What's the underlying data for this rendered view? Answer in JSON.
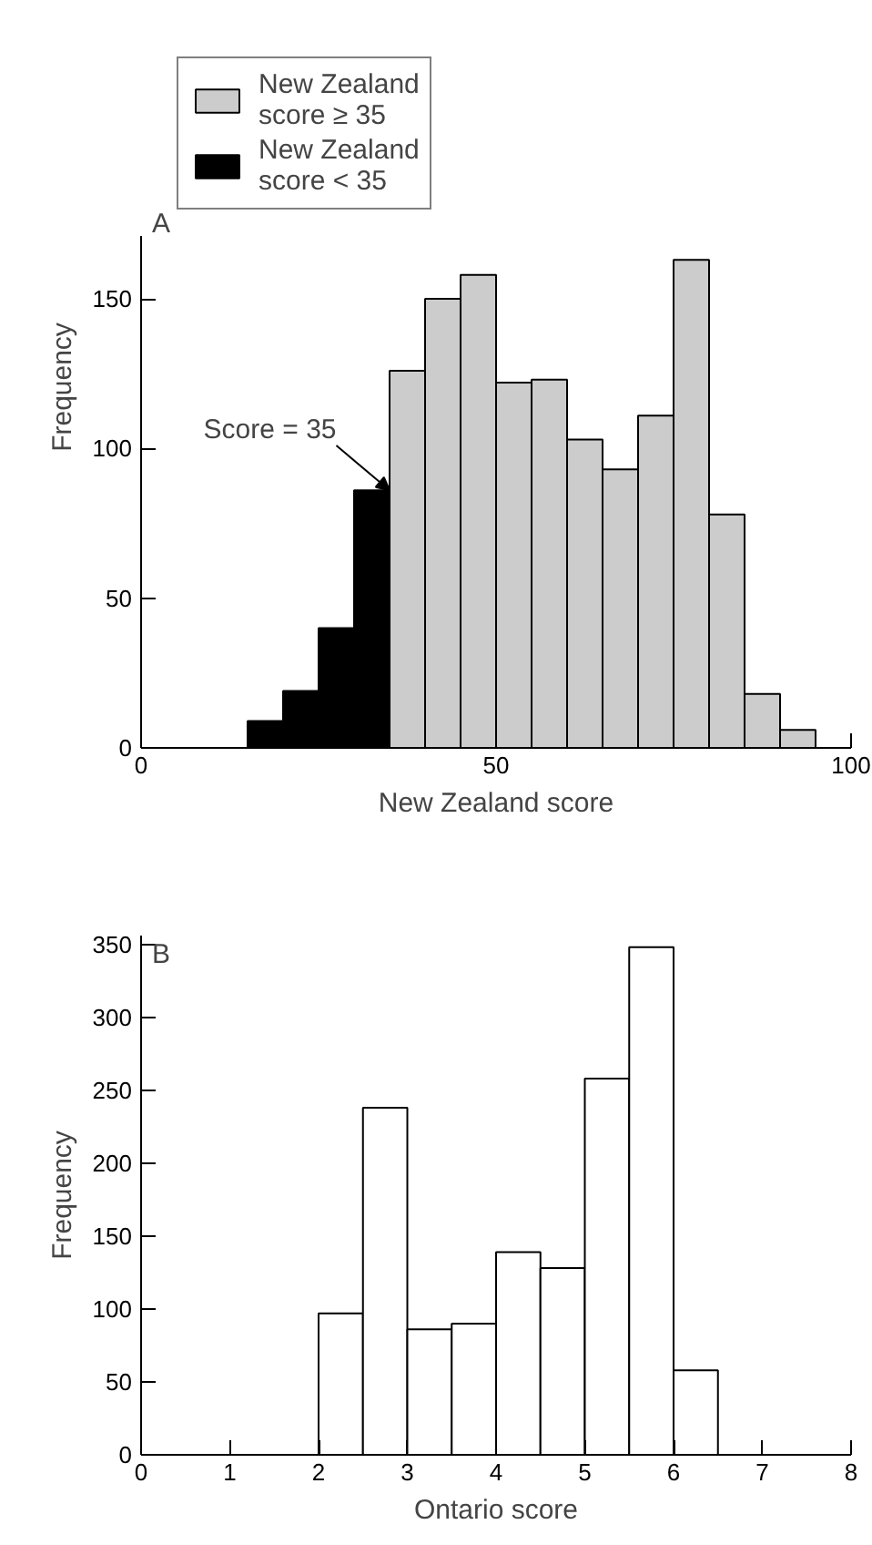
{
  "chart_data": [
    {
      "type": "histogram",
      "title": "A",
      "xlabel": "New Zealand score",
      "ylabel": "Frequency",
      "bins": [
        15,
        20,
        25,
        30,
        35,
        40,
        45,
        50,
        55,
        60,
        65,
        70,
        75,
        80,
        85,
        90,
        95
      ],
      "series": [
        {
          "name": "New Zealand score ≥ 35",
          "color": "#cccccc",
          "values": [
            null,
            null,
            null,
            null,
            126,
            150,
            158,
            122,
            123,
            103,
            93,
            111,
            163,
            78,
            18,
            6
          ]
        },
        {
          "name": "New Zealand score < 35",
          "color": "#000000",
          "values": [
            9,
            19,
            40,
            86,
            null,
            null,
            null,
            null,
            null,
            null,
            null,
            null,
            null,
            null,
            null,
            null
          ]
        }
      ],
      "xlim": [
        0,
        100
      ],
      "ylim": [
        0,
        171
      ],
      "xticks": [
        0,
        50,
        100
      ],
      "yticks": [
        0,
        50,
        100,
        150
      ],
      "legend": "top",
      "grid": false,
      "annotations": [
        {
          "text": "Score = 35",
          "x": 35,
          "y": 86
        }
      ]
    },
    {
      "type": "histogram",
      "title": "B",
      "xlabel": "Ontario score",
      "ylabel": "Frequency",
      "color": "#ffffff",
      "bins": [
        2,
        2.5,
        3,
        3.5,
        4,
        4.5,
        5,
        5.5,
        6,
        6.5
      ],
      "values": [
        97,
        238,
        86,
        90,
        139,
        128,
        258,
        348,
        58
      ],
      "xlim": [
        0,
        8
      ],
      "ylim": [
        0,
        356
      ],
      "xticks": [
        0,
        1,
        2,
        3,
        4,
        5,
        6,
        7,
        8
      ],
      "yticks": [
        0,
        50,
        100,
        150,
        200,
        250,
        300,
        350
      ],
      "grid": false
    }
  ]
}
